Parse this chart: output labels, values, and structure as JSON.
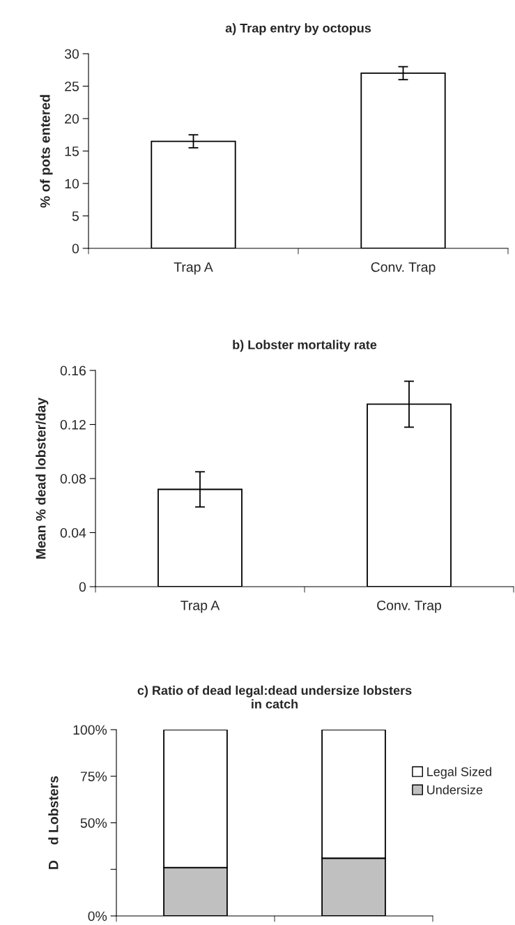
{
  "chart_data": [
    {
      "type": "bar",
      "title": "a) Trap entry by octopus",
      "ylabel": "% of pots entered",
      "categories": [
        "Trap A",
        "Conv. Trap"
      ],
      "values": [
        16.5,
        27.0
      ],
      "errors": [
        1.0,
        1.0
      ],
      "color": "#ffffff",
      "ylim": [
        0,
        30
      ],
      "yticks": [
        0,
        5,
        10,
        15,
        20,
        25,
        30
      ],
      "grid": false
    },
    {
      "type": "bar",
      "title": "b) Lobster mortality rate",
      "ylabel": "Mean % dead lobster/day",
      "categories": [
        "Trap A",
        "Conv. Trap"
      ],
      "values": [
        0.072,
        0.135
      ],
      "errors": [
        0.013,
        0.017
      ],
      "color": "#ffffff",
      "ylim": [
        0,
        0.16
      ],
      "yticks": [
        0,
        0.04,
        0.08,
        0.12,
        0.16
      ],
      "grid": false
    },
    {
      "type": "bar",
      "title": "c) Ratio of dead legal:dead undersize lobsters\nin catch",
      "ylabel": "D    d Lobsters",
      "categories": [
        null,
        null
      ],
      "stacked": true,
      "series": [
        {
          "name": "Undersize",
          "color": "#c0c0c0",
          "values": [
            26,
            31
          ]
        },
        {
          "name": "Legal Sized",
          "color": "#ffffff",
          "values": [
            74,
            69
          ]
        }
      ],
      "ylim": [
        0,
        100
      ],
      "yticks": [
        {
          "value": 0,
          "label": "0%"
        },
        {
          "value": 25,
          "label": null
        },
        {
          "value": 50,
          "label": "50%"
        },
        {
          "value": 75,
          "label": "75%"
        },
        {
          "value": 100,
          "label": "100%"
        }
      ],
      "legend": "right",
      "grid": false
    }
  ]
}
